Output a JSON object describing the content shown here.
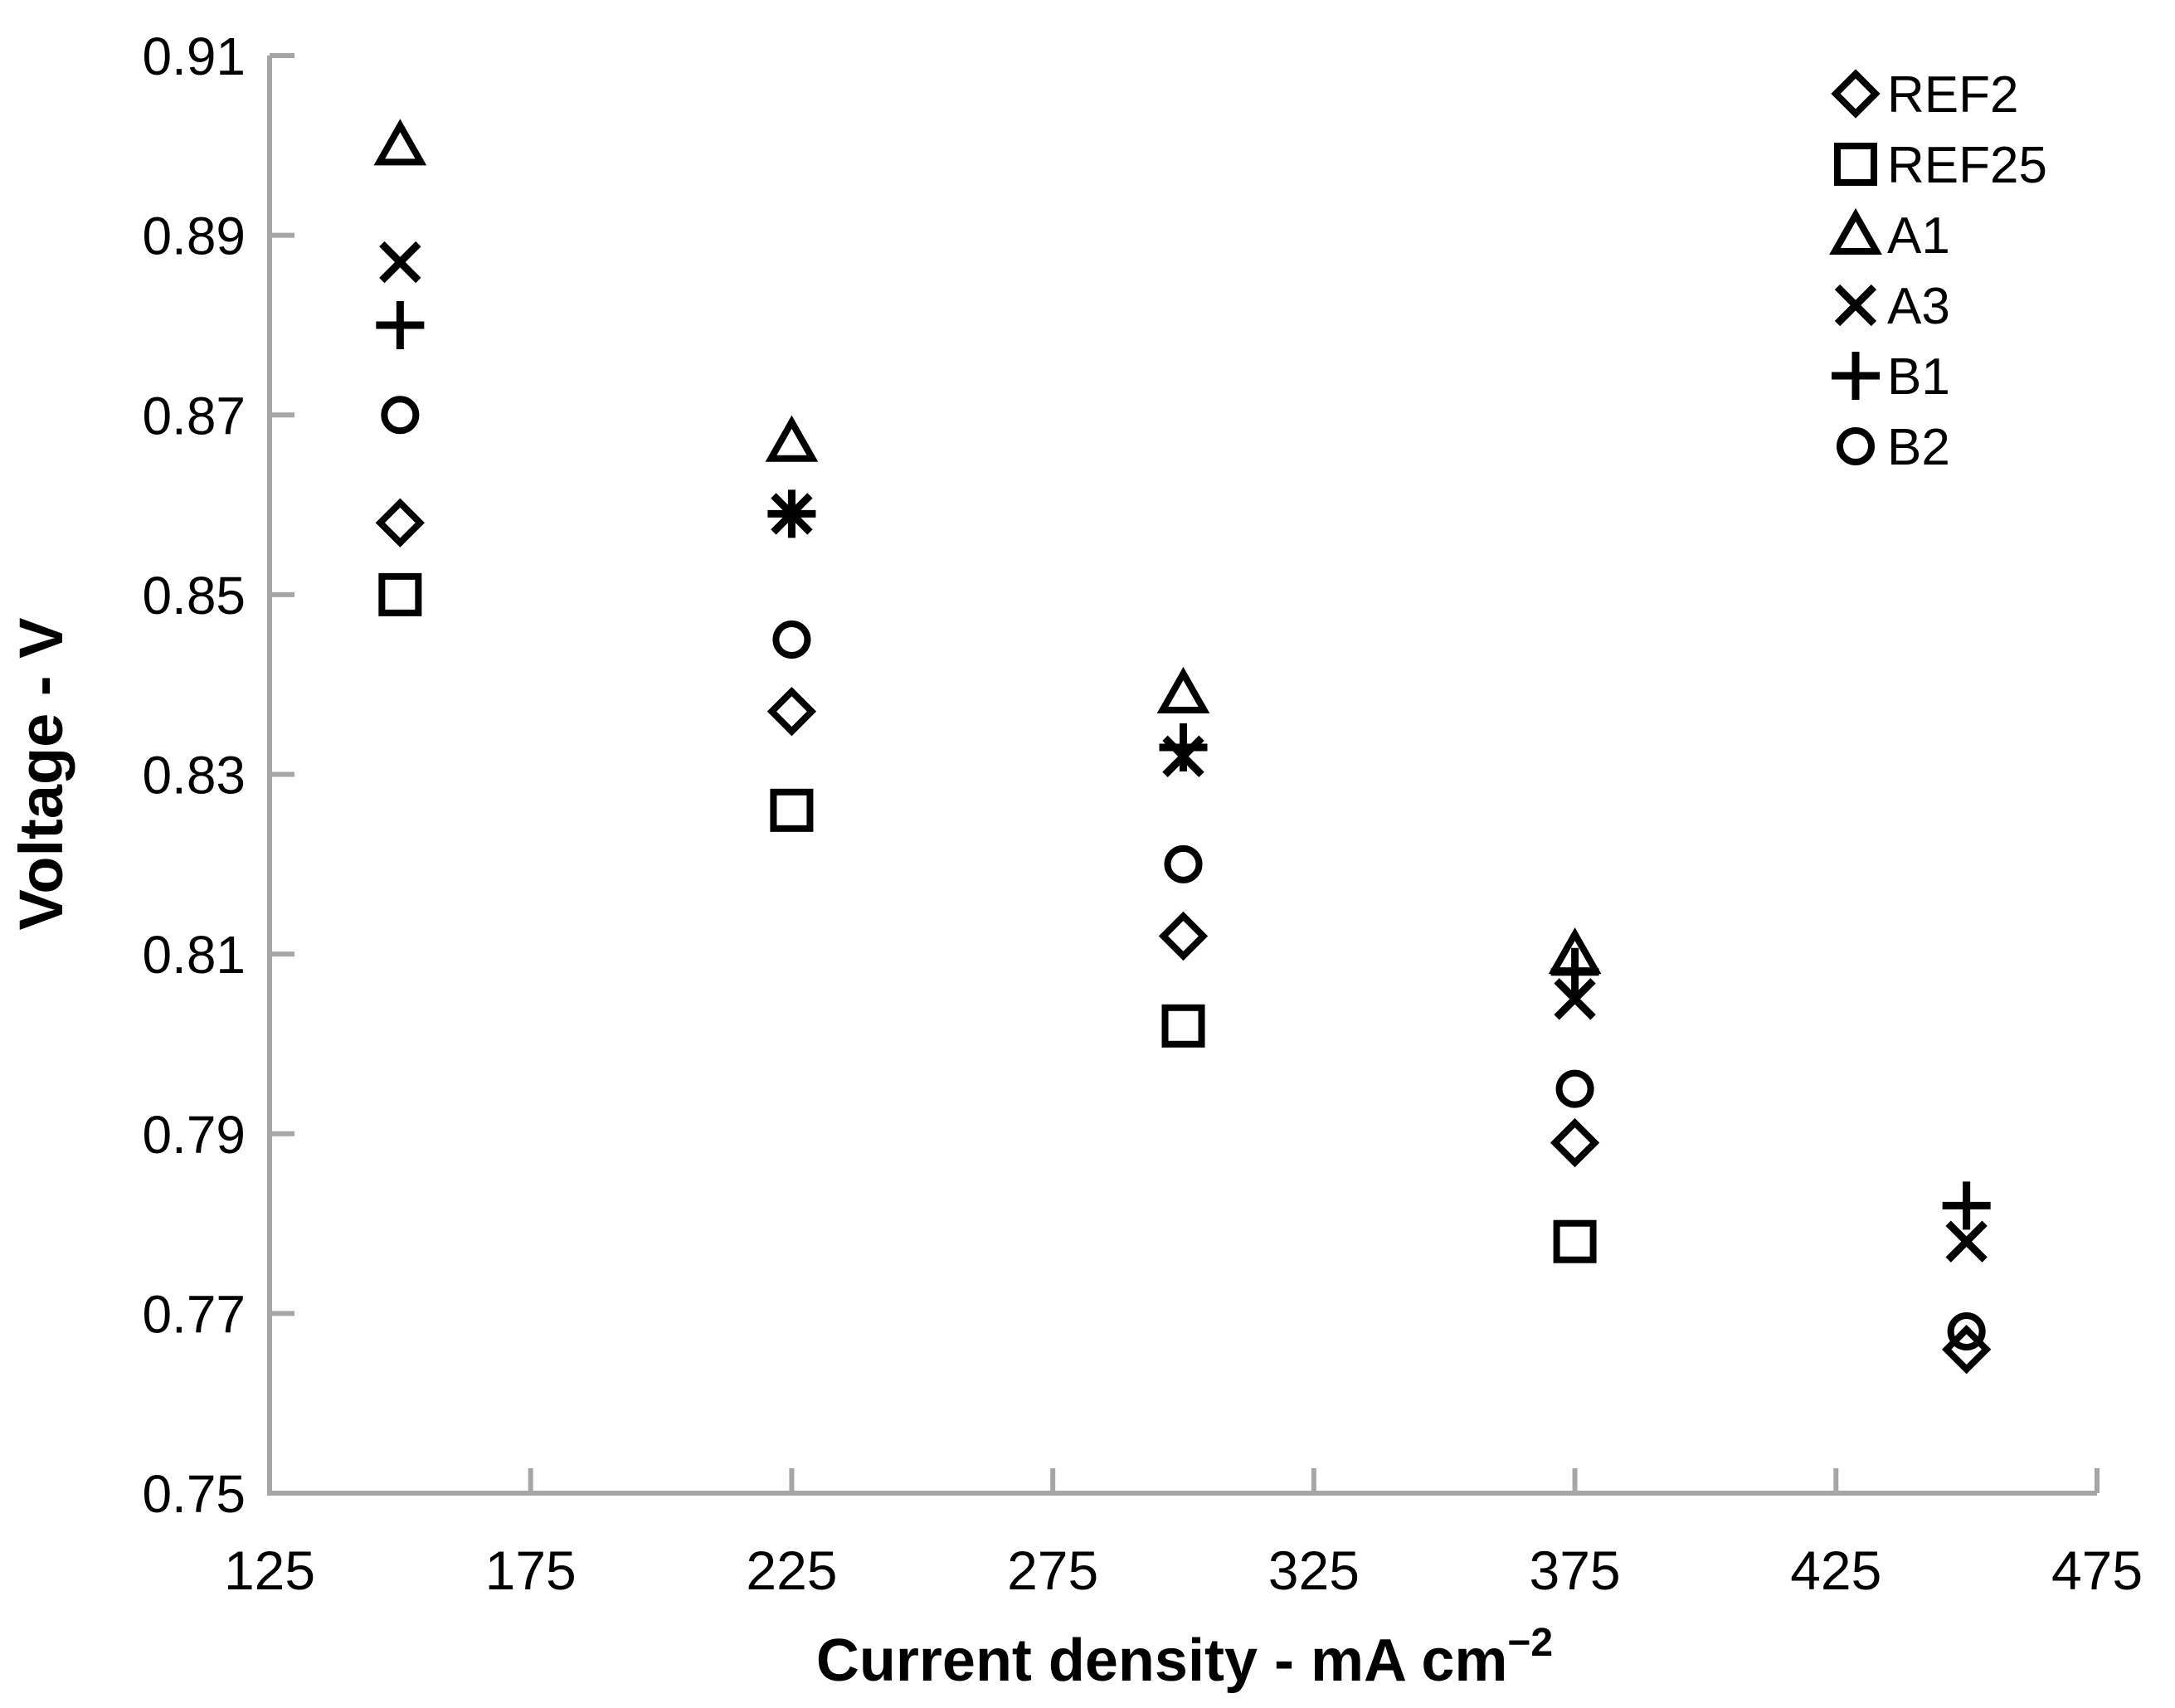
{
  "chart_data": {
    "type": "scatter",
    "title": "",
    "xlabel": "Current density - mA cm⁻²",
    "xlabel_main": "Current density - mA cm",
    "xlabel_superscript": "−2",
    "ylabel": "Voltage - V",
    "xlim": [
      125,
      475
    ],
    "ylim": [
      0.75,
      0.91
    ],
    "x_ticks": [
      125,
      175,
      225,
      275,
      325,
      375,
      425,
      475
    ],
    "y_ticks": [
      "0.75",
      "0.77",
      "0.79",
      "0.81",
      "0.83",
      "0.85",
      "0.87",
      "0.89",
      "0.91"
    ],
    "grid": false,
    "legend_position": "top-right",
    "axis_color": "#A6A6A6",
    "marker_color": "#000000",
    "series": [
      {
        "name": "REF2",
        "marker": "diamond",
        "points": [
          {
            "x": 150,
            "y": 0.858
          },
          {
            "x": 225,
            "y": 0.837
          },
          {
            "x": 300,
            "y": 0.812
          },
          {
            "x": 375,
            "y": 0.789
          },
          {
            "x": 450,
            "y": 0.766
          }
        ]
      },
      {
        "name": "REF25",
        "marker": "square",
        "points": [
          {
            "x": 150,
            "y": 0.85
          },
          {
            "x": 225,
            "y": 0.826
          },
          {
            "x": 300,
            "y": 0.802
          },
          {
            "x": 375,
            "y": 0.778
          }
        ]
      },
      {
        "name": "A1",
        "marker": "triangle",
        "points": [
          {
            "x": 150,
            "y": 0.9
          },
          {
            "x": 225,
            "y": 0.867
          },
          {
            "x": 300,
            "y": 0.839
          },
          {
            "x": 375,
            "y": 0.81
          }
        ]
      },
      {
        "name": "A3",
        "marker": "x",
        "points": [
          {
            "x": 150,
            "y": 0.887
          },
          {
            "x": 225,
            "y": 0.859
          },
          {
            "x": 300,
            "y": 0.832
          },
          {
            "x": 375,
            "y": 0.805
          },
          {
            "x": 450,
            "y": 0.778
          }
        ]
      },
      {
        "name": "B1",
        "marker": "plus",
        "points": [
          {
            "x": 150,
            "y": 0.88
          },
          {
            "x": 225,
            "y": 0.859
          },
          {
            "x": 300,
            "y": 0.833
          },
          {
            "x": 375,
            "y": 0.808
          },
          {
            "x": 450,
            "y": 0.782
          }
        ]
      },
      {
        "name": "B2",
        "marker": "circle",
        "points": [
          {
            "x": 150,
            "y": 0.87
          },
          {
            "x": 225,
            "y": 0.845
          },
          {
            "x": 300,
            "y": 0.82
          },
          {
            "x": 375,
            "y": 0.795
          },
          {
            "x": 450,
            "y": 0.768
          }
        ]
      }
    ]
  }
}
